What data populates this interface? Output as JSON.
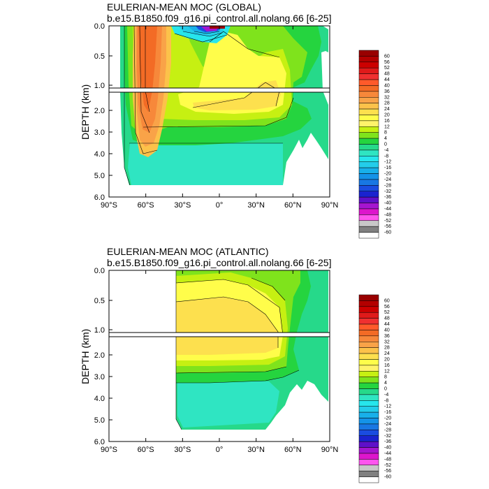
{
  "colors": {
    "levels": [
      60,
      56,
      52,
      48,
      44,
      40,
      36,
      32,
      28,
      24,
      20,
      16,
      12,
      8,
      4,
      0,
      -4,
      -8,
      -12,
      -16,
      -20,
      -24,
      -28,
      -32,
      -36,
      -40,
      -44,
      -48,
      -52,
      -56,
      -60
    ],
    "boxes": [
      "#990000",
      "#b30000",
      "#cc0000",
      "#e01a1a",
      "#f03030",
      "#ff5a2a",
      "#f36b25",
      "#f7883a",
      "#f9a348",
      "#fcc24a",
      "#fde04e",
      "#fffd4a",
      "#fff36a",
      "#c6f012",
      "#7fe31c",
      "#25d43f",
      "#26d98a",
      "#2fe5c2",
      "#27e6ec",
      "#23cdea",
      "#18b0ea",
      "#1493e8",
      "#1877e3",
      "#1a4ce0",
      "#1a23cf",
      "#5f10c9",
      "#a515cf",
      "#dd16cc",
      "#ff55ee",
      "#c8c8c8",
      "#808080",
      "#ffffff"
    ]
  },
  "charts": [
    {
      "title": "EULERIAN-MEAN MOC (GLOBAL)",
      "subtitle": "b.e15.B1850.f09_g16.pi_control.all.nolang.66 [6-25]",
      "ylabel": "DEPTH (km)",
      "xlim_lat": [
        -90,
        90
      ],
      "xticks": [
        "90°S",
        "60°S",
        "30°S",
        "0°",
        "30°N",
        "60°N",
        "90°N"
      ],
      "yticks_upper": [
        "0.0",
        "0.5",
        "1.0"
      ],
      "yticks_lower": [
        "2.0",
        "3.0",
        "4.0",
        "5.0",
        "6.0"
      ],
      "legend_labels": [
        "60",
        "56",
        "52",
        "48",
        "44",
        "40",
        "36",
        "32",
        "28",
        "24",
        "20",
        "16",
        "12",
        "8",
        "4",
        "0",
        "-4",
        "-8",
        "-12",
        "-16",
        "-20",
        "-24",
        "-28",
        "-32",
        "-36",
        "-40",
        "-44",
        "-48",
        "-52",
        "-56",
        "-60"
      ]
    },
    {
      "title": "EULERIAN-MEAN MOC (ATLANTIC)",
      "subtitle": "b.e15.B1850.f09_g16.pi_control.all.nolang.66 [6-25]",
      "ylabel": "DEPTH (km)",
      "xlim_lat": [
        -90,
        90
      ],
      "xticks": [
        "90°S",
        "60°S",
        "30°S",
        "0°",
        "30°N",
        "60°N",
        "90°N"
      ],
      "yticks_upper": [
        "0.0",
        "0.5",
        "1.0"
      ],
      "yticks_lower": [
        "2.0",
        "3.0",
        "4.0",
        "5.0",
        "6.0"
      ],
      "legend_labels": [
        "60",
        "56",
        "52",
        "48",
        "44",
        "40",
        "36",
        "32",
        "28",
        "24",
        "20",
        "16",
        "12",
        "8",
        "4",
        "0",
        "-4",
        "-8",
        "-12",
        "-16",
        "-20",
        "-24",
        "-28",
        "-32",
        "-36",
        "-40",
        "-44",
        "-48",
        "-52",
        "-56",
        "-60"
      ]
    }
  ],
  "chart_data": [
    {
      "type": "heatmap",
      "title": "EULERIAN-MEAN MOC (GLOBAL)",
      "subtitle": "b.e15.B1850.f09_g16.pi_control.all.nolang.66 [6-25]",
      "xlabel": "",
      "ylabel": "DEPTH (km)",
      "x_range": [
        -90,
        90
      ],
      "y_range_km": [
        0,
        6
      ],
      "regions": [
        {
          "lat": [
            -80,
            50
          ],
          "depth": [
            0,
            5.5
          ],
          "value": 0
        },
        {
          "lat": [
            -78,
            60
          ],
          "depth": [
            0,
            1.1
          ],
          "value": 4
        },
        {
          "lat": [
            -70,
            -35
          ],
          "depth": [
            0,
            3.7
          ],
          "value": 12
        },
        {
          "lat": [
            -65,
            -45
          ],
          "depth": [
            0,
            3.0
          ],
          "value": 28
        },
        {
          "lat": [
            -30,
            0
          ],
          "depth": [
            0,
            0.1
          ],
          "value": -36
        },
        {
          "lat": [
            0,
            55
          ],
          "depth": [
            0,
            2.2
          ],
          "value": 12
        },
        {
          "lat": [
            -70,
            50
          ],
          "depth": [
            3.5,
            5.5
          ],
          "value": -4
        }
      ]
    },
    {
      "type": "heatmap",
      "title": "EULERIAN-MEAN MOC (ATLANTIC)",
      "subtitle": "b.e15.B1850.f09_g16.pi_control.all.nolang.66 [6-25]",
      "xlabel": "",
      "ylabel": "DEPTH (km)",
      "x_range": [
        -90,
        90
      ],
      "y_range_km": [
        0,
        6
      ],
      "regions": [
        {
          "lat": [
            -34,
            60
          ],
          "depth": [
            0,
            5.5
          ],
          "value": 0
        },
        {
          "lat": [
            -34,
            60
          ],
          "depth": [
            0,
            2.6
          ],
          "value": 4
        },
        {
          "lat": [
            -34,
            55
          ],
          "depth": [
            0.1,
            2.3
          ],
          "value": 12
        },
        {
          "lat": [
            -34,
            50
          ],
          "depth": [
            0.6,
            1.9
          ],
          "value": 16
        },
        {
          "lat": [
            -34,
            50
          ],
          "depth": [
            3.4,
            5.5
          ],
          "value": -4
        }
      ]
    }
  ]
}
